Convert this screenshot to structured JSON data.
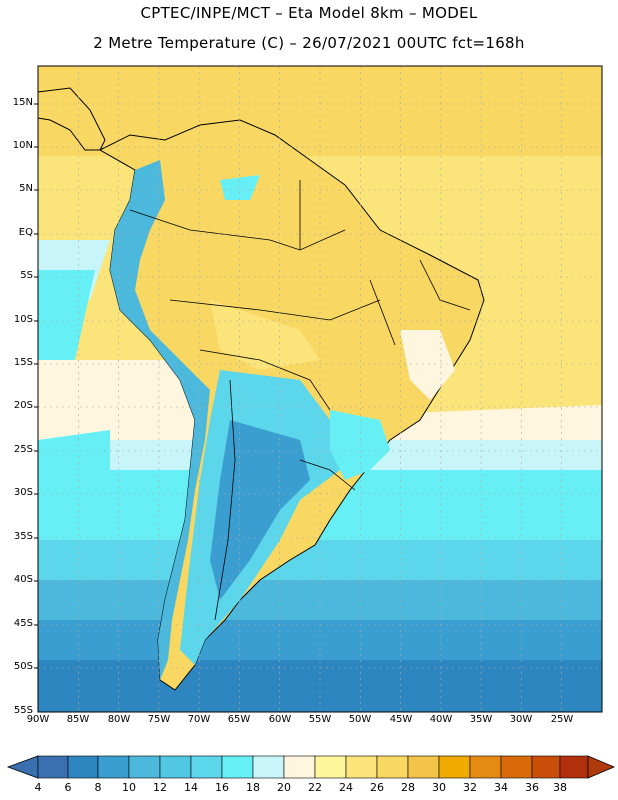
{
  "header": {
    "line1": "CPTEC/INPE/MCT –  Eta Model 8km – MODEL",
    "line2": "2 Metre Temperature (C) – 26/07/2021 00UTC fct=168h"
  },
  "map": {
    "lon_range": [
      -90,
      -20
    ],
    "lat_range": [
      -55,
      20
    ],
    "lat_ticks": [
      {
        "lat": 15,
        "label": "15N"
      },
      {
        "lat": 10,
        "label": "10N"
      },
      {
        "lat": 5,
        "label": "5N"
      },
      {
        "lat": 0,
        "label": "EQ"
      },
      {
        "lat": -5,
        "label": "5S"
      },
      {
        "lat": -10,
        "label": "10S"
      },
      {
        "lat": -15,
        "label": "15S"
      },
      {
        "lat": -20,
        "label": "20S"
      },
      {
        "lat": -25,
        "label": "25S"
      },
      {
        "lat": -30,
        "label": "30S"
      },
      {
        "lat": -35,
        "label": "35S"
      },
      {
        "lat": -40,
        "label": "40S"
      },
      {
        "lat": -45,
        "label": "45S"
      },
      {
        "lat": -50,
        "label": "50S"
      },
      {
        "lat": -55,
        "label": "55S"
      }
    ],
    "lon_ticks": [
      {
        "lon": -90,
        "label": "90W"
      },
      {
        "lon": -85,
        "label": "85W"
      },
      {
        "lon": -80,
        "label": "80W"
      },
      {
        "lon": -75,
        "label": "75W"
      },
      {
        "lon": -70,
        "label": "70W"
      },
      {
        "lon": -65,
        "label": "65W"
      },
      {
        "lon": -60,
        "label": "60W"
      },
      {
        "lon": -55,
        "label": "55W"
      },
      {
        "lon": -50,
        "label": "50W"
      },
      {
        "lon": -45,
        "label": "45W"
      },
      {
        "lon": -40,
        "label": "40W"
      },
      {
        "lon": -35,
        "label": "35W"
      },
      {
        "lon": -30,
        "label": "30W"
      },
      {
        "lon": -25,
        "label": "25W"
      }
    ]
  },
  "colorbar": {
    "labels": [
      "4",
      "6",
      "8",
      "10",
      "12",
      "14",
      "16",
      "18",
      "20",
      "22",
      "24",
      "26",
      "28",
      "30",
      "32",
      "34",
      "36",
      "38"
    ],
    "colors": [
      "#3a6fb0",
      "#2e86c1",
      "#3a9fd0",
      "#4cb8dc",
      "#52c7e2",
      "#5cd6ea",
      "#66f0f5",
      "#c8f5fa",
      "#fff6e0",
      "#fff59a",
      "#fbe57a",
      "#f8d863",
      "#f2c44a",
      "#f0aa00",
      "#e58a12",
      "#d86a0a",
      "#c84e0a",
      "#b0300c",
      "#e05a05"
    ]
  }
}
